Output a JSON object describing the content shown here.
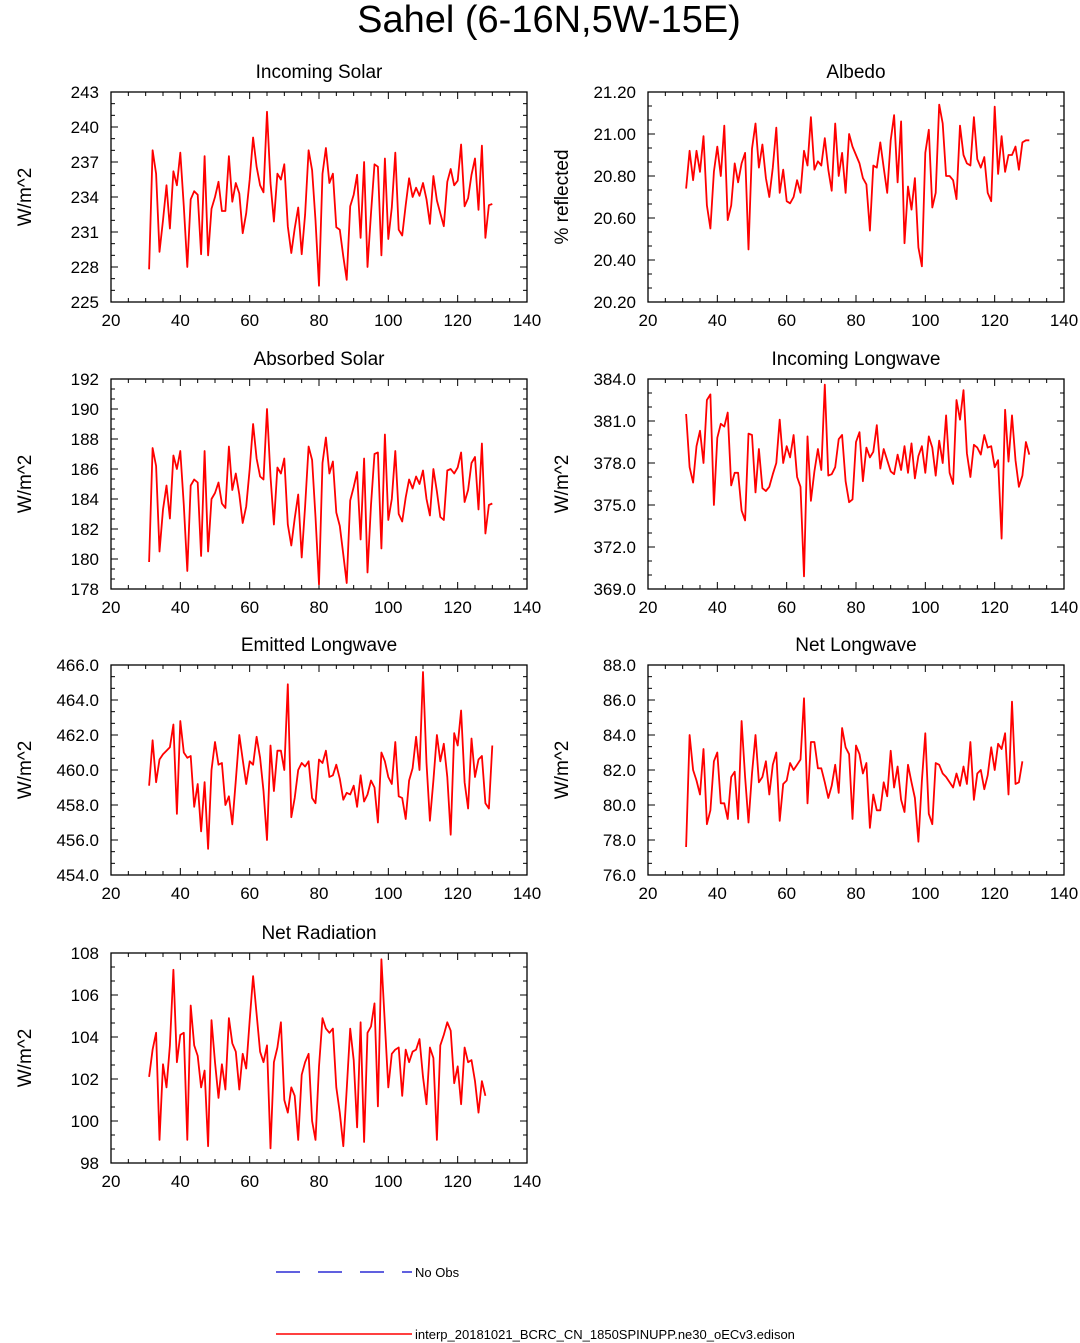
{
  "page_title": "Sahel (6-16N,5W-15E)",
  "colors": {
    "model_line": "#ff0000",
    "obs_line": "#0000cc",
    "axis": "#000000"
  },
  "legend": {
    "obs_label": "No Obs",
    "model_label": "interp_20181021_BCRC_CN_1850SPINUPP.ne30_oECv3.edison"
  },
  "chart_data": [
    {
      "type": "line",
      "title": "Incoming Solar",
      "ylabel": "W/m^2",
      "xlim": [
        20,
        140
      ],
      "ylim": [
        225,
        243
      ],
      "xticks": [
        "20",
        "40",
        "60",
        "80",
        "100",
        "120",
        "140"
      ],
      "yticks": [
        "225",
        "228",
        "231",
        "234",
        "237",
        "240",
        "243"
      ],
      "x_start": 31,
      "series": [
        {
          "values": [
            227.8,
            238.0,
            236.0,
            229.3,
            232.0,
            235.0,
            231.3,
            236.2,
            235.0,
            237.8,
            233.2,
            228.0,
            233.8,
            234.5,
            234.2,
            229.1,
            237.5,
            229.0,
            233.0,
            234.0,
            235.3,
            232.8,
            232.8,
            237.5,
            233.6,
            235.2,
            234.3,
            230.9,
            232.6,
            235.5,
            239.1,
            236.6,
            235.0,
            234.4,
            241.3,
            235.2,
            231.9,
            236.0,
            235.5,
            236.8,
            231.5,
            229.2,
            231.3,
            233.1,
            229.1,
            232.5,
            238.0,
            236.3,
            232.0,
            226.4,
            236.0,
            238.2,
            235.2,
            236.0,
            231.4,
            231.2,
            228.9,
            226.9,
            233.2,
            234.2,
            235.9,
            230.5,
            237.0,
            228.0,
            232.6,
            236.8,
            236.6,
            229.0,
            237.3,
            230.4,
            233.1,
            237.8,
            231.2,
            230.7,
            233.3,
            235.6,
            234.0,
            234.8,
            234.1,
            235.2,
            233.8,
            231.7,
            235.8,
            233.7,
            232.6,
            231.5,
            235.3,
            236.4,
            235.0,
            235.4,
            238.5,
            233.2,
            233.9,
            235.9,
            237.3,
            232.9,
            238.4,
            230.5,
            233.3,
            233.4
          ]
        }
      ]
    },
    {
      "type": "line",
      "title": "Albedo",
      "ylabel": "% reflected",
      "xlim": [
        20,
        140
      ],
      "ylim": [
        20.2,
        21.2
      ],
      "xticks": [
        "20",
        "40",
        "60",
        "80",
        "100",
        "120",
        "140"
      ],
      "yticks": [
        "20.20",
        "20.40",
        "20.60",
        "20.80",
        "21.00",
        "21.20"
      ],
      "x_start": 31,
      "series": [
        {
          "values": [
            20.74,
            20.92,
            20.78,
            20.92,
            20.82,
            20.99,
            20.66,
            20.55,
            20.82,
            20.94,
            20.8,
            21.04,
            20.59,
            20.66,
            20.86,
            20.77,
            20.86,
            20.91,
            20.45,
            20.93,
            21.05,
            20.84,
            20.95,
            20.79,
            20.7,
            20.84,
            21.03,
            20.72,
            20.83,
            20.68,
            20.67,
            20.7,
            20.78,
            20.72,
            20.92,
            20.85,
            21.08,
            20.83,
            20.87,
            20.85,
            20.98,
            20.83,
            20.73,
            21.05,
            20.8,
            20.91,
            20.72,
            21.0,
            20.94,
            20.9,
            20.86,
            20.79,
            20.76,
            20.54,
            20.85,
            20.84,
            20.96,
            20.84,
            20.72,
            20.97,
            21.09,
            20.77,
            21.06,
            20.48,
            20.75,
            20.64,
            20.79,
            20.46,
            20.37,
            20.91,
            21.02,
            20.65,
            20.72,
            21.14,
            21.05,
            20.8,
            20.8,
            20.78,
            20.69,
            21.04,
            20.9,
            20.86,
            20.85,
            21.08,
            20.88,
            20.84,
            20.89,
            20.72,
            20.68,
            21.13,
            20.81,
            20.99,
            20.82,
            20.9,
            20.9,
            20.94,
            20.83,
            20.96,
            20.97,
            20.97
          ]
        }
      ]
    },
    {
      "type": "line",
      "title": "Absorbed Solar",
      "ylabel": "W/m^2",
      "xlim": [
        20,
        140
      ],
      "ylim": [
        178,
        192
      ],
      "xticks": [
        "20",
        "40",
        "60",
        "80",
        "100",
        "120",
        "140"
      ],
      "yticks": [
        "178",
        "180",
        "182",
        "184",
        "186",
        "188",
        "190",
        "192"
      ],
      "x_start": 31,
      "series": [
        {
          "values": [
            179.8,
            187.4,
            186.2,
            180.5,
            183.3,
            184.9,
            182.7,
            186.9,
            186.0,
            187.2,
            183.6,
            179.2,
            184.9,
            185.3,
            185.1,
            180.2,
            187.2,
            180.5,
            184.0,
            184.4,
            185.1,
            183.7,
            183.4,
            187.5,
            184.6,
            185.7,
            184.3,
            182.4,
            183.5,
            186.0,
            189.0,
            186.7,
            185.5,
            185.3,
            190.0,
            185.5,
            182.3,
            186.1,
            185.7,
            186.7,
            182.3,
            180.9,
            182.7,
            184.3,
            180.1,
            183.5,
            187.5,
            186.6,
            182.8,
            178.3,
            186.4,
            188.1,
            185.7,
            186.5,
            183.1,
            182.2,
            180.3,
            178.4,
            183.9,
            184.8,
            185.8,
            181.3,
            186.7,
            179.1,
            183.6,
            187.0,
            187.1,
            180.7,
            188.3,
            182.6,
            184.0,
            187.2,
            183.0,
            182.5,
            184.1,
            185.3,
            184.7,
            185.5,
            185.0,
            185.9,
            184.0,
            182.9,
            186.0,
            184.5,
            182.8,
            182.6,
            185.9,
            186.0,
            185.7,
            186.1,
            187.1,
            183.8,
            184.6,
            186.4,
            186.8,
            183.3,
            187.7,
            181.7,
            183.6,
            183.7
          ]
        }
      ]
    },
    {
      "type": "line",
      "title": "Incoming Longwave",
      "ylabel": "W/m^2",
      "xlim": [
        20,
        140
      ],
      "ylim": [
        369,
        384
      ],
      "xticks": [
        "20",
        "40",
        "60",
        "80",
        "100",
        "120",
        "140"
      ],
      "yticks": [
        "369.0",
        "372.0",
        "375.0",
        "378.0",
        "381.0",
        "384.0"
      ],
      "x_start": 31,
      "series": [
        {
          "values": [
            381.5,
            377.7,
            376.6,
            379.2,
            380.3,
            378.0,
            382.5,
            382.9,
            375.0,
            379.8,
            380.8,
            380.6,
            381.6,
            376.4,
            377.3,
            377.3,
            374.6,
            373.9,
            380.1,
            380.0,
            375.9,
            379.0,
            376.2,
            376.0,
            376.3,
            377.2,
            378.0,
            381.1,
            378.0,
            379.2,
            378.4,
            380.0,
            377.0,
            376.3,
            369.9,
            379.9,
            375.3,
            377.4,
            379.0,
            377.5,
            383.6,
            377.1,
            377.2,
            377.7,
            379.7,
            380.0,
            376.7,
            375.2,
            375.4,
            379.5,
            380.2,
            376.7,
            379.1,
            378.4,
            378.8,
            380.7,
            377.6,
            379.0,
            378.2,
            377.4,
            377.2,
            378.6,
            377.5,
            379.2,
            377.3,
            379.4,
            376.9,
            378.5,
            379.2,
            377.3,
            379.9,
            379.1,
            377.1,
            379.6,
            378.0,
            381.4,
            377.3,
            376.5,
            382.5,
            381.1,
            383.2,
            378.7,
            377.0,
            379.3,
            379.1,
            378.6,
            380.0,
            379.1,
            379.2,
            377.7,
            378.2,
            372.6,
            381.8,
            378.1,
            381.4,
            378.2,
            376.3,
            377.1,
            379.5,
            378.6
          ]
        }
      ]
    },
    {
      "type": "line",
      "title": "Emitted Longwave",
      "ylabel": "W/m^2",
      "xlim": [
        20,
        140
      ],
      "ylim": [
        454,
        466
      ],
      "xticks": [
        "20",
        "40",
        "60",
        "80",
        "100",
        "120",
        "140"
      ],
      "yticks": [
        "454.0",
        "456.0",
        "458.0",
        "460.0",
        "462.0",
        "464.0",
        "466.0"
      ],
      "x_start": 31,
      "series": [
        {
          "values": [
            459.1,
            461.7,
            459.3,
            460.6,
            460.9,
            461.1,
            461.3,
            462.6,
            457.5,
            462.8,
            461.0,
            460.7,
            460.8,
            457.9,
            459.2,
            456.5,
            459.3,
            455.5,
            460.0,
            461.6,
            460.3,
            460.4,
            458.0,
            458.5,
            456.9,
            459.4,
            462.0,
            460.6,
            459.2,
            460.5,
            460.3,
            461.9,
            460.7,
            458.8,
            456.0,
            461.4,
            458.8,
            461.1,
            461.1,
            460.0,
            464.9,
            457.3,
            458.4,
            460.0,
            460.4,
            460.2,
            460.5,
            458.4,
            458.1,
            460.6,
            460.4,
            461.1,
            459.6,
            459.7,
            460.3,
            459.5,
            458.3,
            458.7,
            458.6,
            459.1,
            457.9,
            459.7,
            458.2,
            458.6,
            459.4,
            459.0,
            457.0,
            461.0,
            460.5,
            459.6,
            459.2,
            461.6,
            458.5,
            458.4,
            457.2,
            459.4,
            460.1,
            461.9,
            460.0,
            465.6,
            460.4,
            457.1,
            459.4,
            462.0,
            460.5,
            461.5,
            459.6,
            456.3,
            462.1,
            461.4,
            463.4,
            459.3,
            457.8,
            461.8,
            459.6,
            460.6,
            460.8,
            458.1,
            457.8,
            461.4
          ]
        }
      ]
    },
    {
      "type": "line",
      "title": "Net Longwave",
      "ylabel": "W/m^2",
      "xlim": [
        20,
        140
      ],
      "ylim": [
        76,
        88
      ],
      "xticks": [
        "20",
        "40",
        "60",
        "80",
        "100",
        "120",
        "140"
      ],
      "yticks": [
        "76.0",
        "78.0",
        "80.0",
        "82.0",
        "84.0",
        "86.0",
        "88.0"
      ],
      "x_start": 31,
      "series": [
        {
          "values": [
            77.6,
            84.0,
            82.0,
            81.4,
            80.6,
            83.2,
            78.9,
            79.7,
            82.5,
            83.0,
            80.1,
            80.1,
            79.2,
            81.6,
            81.9,
            79.2,
            84.8,
            81.6,
            79.0,
            81.8,
            84.0,
            81.3,
            81.6,
            82.5,
            80.6,
            82.3,
            83.0,
            79.1,
            81.2,
            81.4,
            82.4,
            82.0,
            82.3,
            82.6,
            86.1,
            80.1,
            83.6,
            83.6,
            82.1,
            82.1,
            81.3,
            80.4,
            81.1,
            82.3,
            80.7,
            84.4,
            83.3,
            82.9,
            79.2,
            83.4,
            82.9,
            81.8,
            82.4,
            78.7,
            80.6,
            79.7,
            79.7,
            81.3,
            80.5,
            83.1,
            81.0,
            82.2,
            80.3,
            79.6,
            82.3,
            81.3,
            80.4,
            77.9,
            81.4,
            84.1,
            79.5,
            78.9,
            82.4,
            82.3,
            81.8,
            81.6,
            81.3,
            81.0,
            81.8,
            81.1,
            82.2,
            81.2,
            83.6,
            80.3,
            81.8,
            82.0,
            80.9,
            81.7,
            83.3,
            82.0,
            83.5,
            83.2,
            84.1,
            80.6,
            85.9,
            81.2,
            81.3,
            82.5
          ]
        }
      ]
    },
    {
      "type": "line",
      "title": "Net Radiation",
      "ylabel": "W/m^2",
      "xlim": [
        20,
        140
      ],
      "ylim": [
        98,
        108
      ],
      "xticks": [
        "20",
        "40",
        "60",
        "80",
        "100",
        "120",
        "140"
      ],
      "yticks": [
        "98",
        "100",
        "102",
        "104",
        "106",
        "108"
      ],
      "x_start": 31,
      "series": [
        {
          "values": [
            102.1,
            103.4,
            104.2,
            99.1,
            102.7,
            101.6,
            103.6,
            107.2,
            102.8,
            104.1,
            104.2,
            99.1,
            105.5,
            103.6,
            103.1,
            101.6,
            102.4,
            98.8,
            104.8,
            102.8,
            101.1,
            102.7,
            101.5,
            104.9,
            103.7,
            103.3,
            101.5,
            103.2,
            102.5,
            104.8,
            106.9,
            105.1,
            103.3,
            102.8,
            103.6,
            98.7,
            102.8,
            103.5,
            104.7,
            101.0,
            100.4,
            101.6,
            101.2,
            99.1,
            102.2,
            102.8,
            103.2,
            100.0,
            99.1,
            102.6,
            104.9,
            104.4,
            104.2,
            104.4,
            101.6,
            100.4,
            98.8,
            101.5,
            104.4,
            102.9,
            99.7,
            104.7,
            99.0,
            104.2,
            104.5,
            105.6,
            100.7,
            107.7,
            104.6,
            101.6,
            103.2,
            103.4,
            103.5,
            101.2,
            103.4,
            102.8,
            103.3,
            103.4,
            103.9,
            102.1,
            100.8,
            103.5,
            103.0,
            99.1,
            103.6,
            104.1,
            104.7,
            104.3,
            101.8,
            102.6,
            100.8,
            103.5,
            102.8,
            102.9,
            101.9,
            100.4,
            101.9,
            101.2
          ]
        }
      ]
    }
  ]
}
